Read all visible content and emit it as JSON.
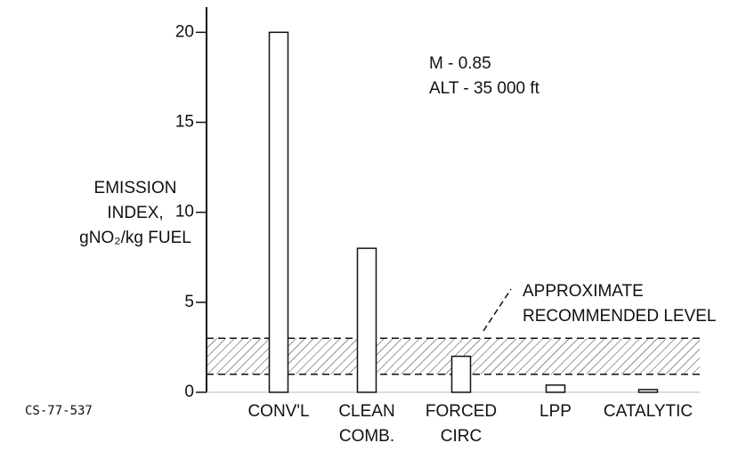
{
  "chart_data": {
    "type": "bar",
    "ylabel": [
      "EMISSION",
      "INDEX,",
      "gNO₂/kg FUEL"
    ],
    "categories": [
      [
        "CONV'L"
      ],
      [
        "CLEAN",
        "COMB."
      ],
      [
        "FORCED",
        "CIRC"
      ],
      [
        "LPP"
      ],
      [
        "CATALYTIC"
      ]
    ],
    "values": [
      20,
      8,
      2,
      0.4,
      0.15
    ],
    "color": "#ffffff",
    "ylim": [
      0,
      21.4
    ],
    "yticks": [
      0,
      5,
      10,
      15,
      20
    ],
    "band": [
      1,
      3
    ],
    "band_label": [
      "APPROXIMATE",
      "RECOMMENDED LEVEL"
    ],
    "conditions": [
      "M - 0.85",
      "ALT - 35 000 ft"
    ],
    "figure_id": "CS-77-537"
  }
}
